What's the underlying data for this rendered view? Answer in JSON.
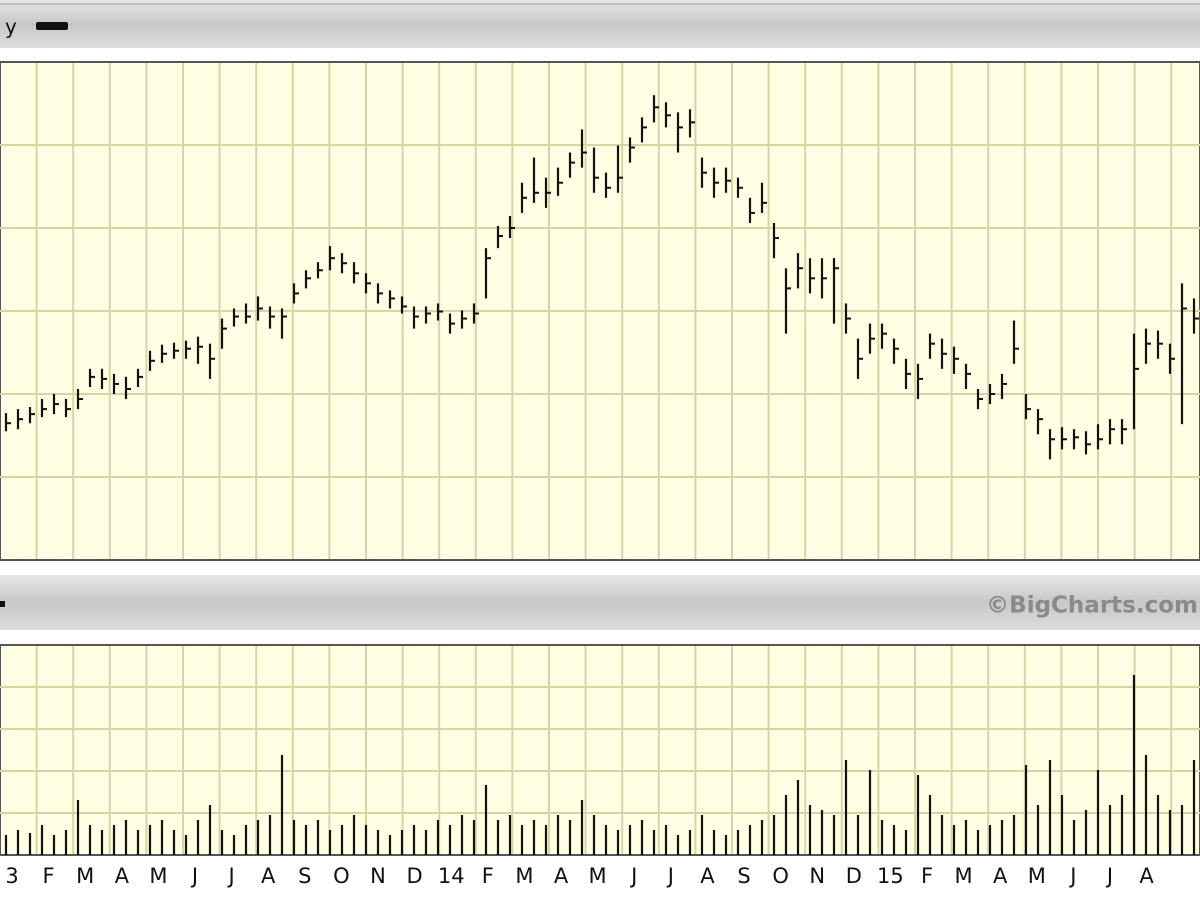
{
  "chart_data": [
    {
      "type": "ohlc",
      "legend_label": "y",
      "color": "#111111",
      "ylim": [
        0,
        495
      ],
      "grid": true,
      "high": [
        146,
        150,
        152,
        160,
        165,
        160,
        170,
        190,
        190,
        185,
        182,
        190,
        208,
        214,
        216,
        218,
        222,
        215,
        240,
        250,
        255,
        262,
        252,
        250,
        275,
        288,
        296,
        312,
        305,
        296,
        285,
        275,
        268,
        262,
        252,
        252,
        255,
        245,
        248,
        255,
        310,
        332,
        342,
        375,
        400,
        380,
        390,
        405,
        428,
        410,
        385,
        412,
        420,
        440,
        462,
        455,
        445,
        448,
        400,
        390,
        390,
        380,
        360,
        375,
        335,
        290,
        305,
        300,
        300,
        300,
        255,
        220,
        235,
        235,
        220,
        200,
        195,
        225,
        220,
        212,
        195,
        170,
        175,
        185,
        238,
        165,
        150,
        130,
        132,
        130,
        128,
        135,
        140,
        140,
        225,
        230,
        228,
        215,
        275,
        260
      ],
      "low": [
        128,
        130,
        136,
        142,
        145,
        142,
        150,
        172,
        170,
        165,
        160,
        172,
        188,
        196,
        200,
        200,
        195,
        180,
        210,
        232,
        235,
        238,
        230,
        220,
        255,
        270,
        280,
        288,
        285,
        275,
        265,
        255,
        250,
        245,
        230,
        235,
        238,
        225,
        230,
        235,
        260,
        310,
        320,
        345,
        355,
        350,
        362,
        380,
        390,
        365,
        360,
        365,
        395,
        415,
        435,
        430,
        405,
        420,
        370,
        360,
        365,
        360,
        335,
        345,
        300,
        225,
        270,
        265,
        260,
        235,
        225,
        180,
        205,
        210,
        195,
        170,
        160,
        200,
        190,
        185,
        170,
        150,
        155,
        160,
        195,
        140,
        125,
        100,
        110,
        110,
        105,
        110,
        115,
        115,
        130,
        195,
        200,
        185,
        135,
        225
      ],
      "close": [
        136,
        140,
        145,
        150,
        155,
        150,
        160,
        182,
        180,
        175,
        170,
        182,
        198,
        205,
        208,
        210,
        212,
        200,
        230,
        242,
        242,
        250,
        242,
        242,
        265,
        280,
        288,
        300,
        295,
        285,
        275,
        265,
        260,
        252,
        242,
        245,
        247,
        235,
        240,
        245,
        300,
        322,
        330,
        360,
        365,
        365,
        375,
        395,
        405,
        380,
        370,
        380,
        410,
        430,
        450,
        442,
        430,
        435,
        385,
        375,
        377,
        370,
        345,
        355,
        320,
        270,
        290,
        280,
        280,
        290,
        240,
        200,
        220,
        225,
        210,
        185,
        180,
        215,
        205,
        200,
        185,
        160,
        165,
        175,
        210,
        150,
        140,
        120,
        120,
        122,
        115,
        120,
        130,
        130,
        190,
        215,
        215,
        200,
        250,
        240
      ]
    },
    {
      "type": "bar",
      "watermark": "©BigCharts.com",
      "color": "#111111",
      "ylim": [
        0,
        210
      ],
      "grid": true,
      "xlabels": [
        "3",
        "F",
        "M",
        "A",
        "M",
        "J",
        "J",
        "A",
        "S",
        "O",
        "N",
        "D",
        "14",
        "F",
        "M",
        "A",
        "M",
        "J",
        "J",
        "A",
        "S",
        "O",
        "N",
        "D",
        "15",
        "F",
        "M",
        "A",
        "M",
        "J",
        "J",
        "A"
      ],
      "values": [
        20,
        25,
        22,
        30,
        20,
        25,
        55,
        30,
        25,
        30,
        35,
        25,
        30,
        35,
        25,
        20,
        35,
        50,
        25,
        20,
        30,
        35,
        40,
        100,
        35,
        30,
        35,
        25,
        30,
        40,
        30,
        25,
        20,
        25,
        30,
        25,
        35,
        30,
        40,
        35,
        70,
        35,
        40,
        30,
        35,
        30,
        40,
        35,
        55,
        40,
        30,
        25,
        30,
        35,
        25,
        30,
        20,
        25,
        40,
        25,
        20,
        25,
        30,
        35,
        40,
        60,
        75,
        50,
        45,
        40,
        95,
        40,
        85,
        35,
        30,
        25,
        80,
        60,
        40,
        30,
        35,
        25,
        30,
        35,
        40,
        90,
        50,
        95,
        60,
        35,
        45,
        85,
        50,
        60,
        180,
        100,
        60,
        45,
        50,
        95
      ]
    }
  ]
}
